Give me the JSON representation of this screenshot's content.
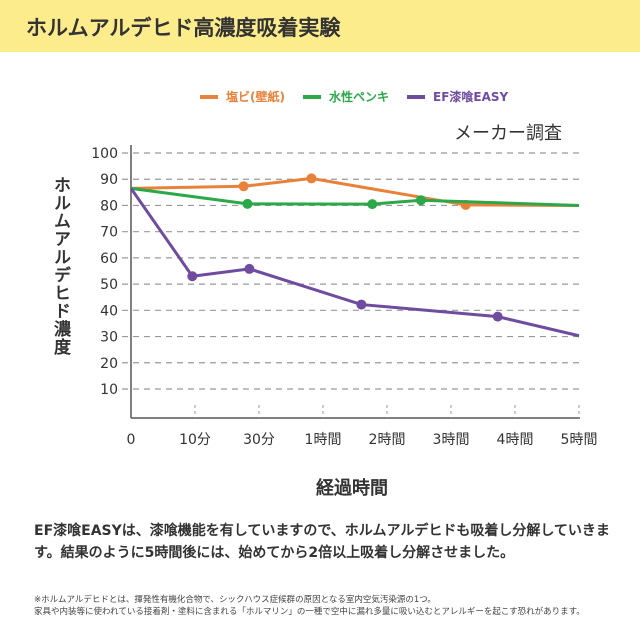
{
  "header": {
    "title": "ホルムアルデヒド高濃度吸着実験"
  },
  "chart_data": {
    "type": "line",
    "title": "ホルムアルデヒド高濃度吸着実験",
    "source": "メーカー調査",
    "xlabel": "経過時間",
    "ylabel": "ホルムアルデヒド濃度",
    "ylim": [
      0,
      100
    ],
    "yticks": [
      10,
      20,
      30,
      40,
      50,
      60,
      70,
      80,
      90,
      100
    ],
    "xticks": [
      {
        "label": "0",
        "hours": 0
      },
      {
        "label": "10分",
        "hours": 0.167
      },
      {
        "label": "30分",
        "hours": 0.5
      },
      {
        "label": "1時間",
        "hours": 1
      },
      {
        "label": "2時間",
        "hours": 2
      },
      {
        "label": "3時間",
        "hours": 3
      },
      {
        "label": "4時間",
        "hours": 4
      },
      {
        "label": "5時間",
        "hours": 5
      }
    ],
    "grid": true,
    "legend": "top",
    "series": [
      {
        "name": "塩ビ(壁紙)",
        "color": "#e8823a",
        "x": [
          0,
          0.42,
          0.91,
          3.23,
          5
        ],
        "y": [
          86.5,
          87.3,
          90.3,
          80.2,
          80
        ],
        "markers": [
          false,
          true,
          true,
          true,
          false
        ]
      },
      {
        "name": "水性ペンキ",
        "color": "#2aa84a",
        "x": [
          0,
          0.44,
          1.77,
          2.53,
          5
        ],
        "y": [
          86.5,
          80.6,
          80.5,
          82,
          80
        ],
        "markers": [
          false,
          true,
          true,
          true,
          false
        ]
      },
      {
        "name": "EF漆喰EASY",
        "color": "#6f4ca0",
        "x": [
          0,
          0.16,
          0.45,
          1.6,
          3.73,
          5
        ],
        "y": [
          86.5,
          53,
          55.8,
          42.2,
          37.6,
          30.3
        ],
        "markers": [
          false,
          true,
          true,
          true,
          true,
          false
        ]
      }
    ]
  },
  "description": "EF漆喰EASYは、漆喰機能を有していますので、ホルムアルデヒドも吸着し分解していきます。結果のように5時間後には、始めてから2倍以上吸着し分解させました。",
  "note_lines": [
    "※ホルムアルデヒドとは、揮発性有機化合物で、シックハウス症候群の原因となる室内空気汚染源の1つ。",
    "家具や内装等に使われている接着剤・塗料に含まれる「ホルマリン」の一種で空中に漏れ多量に吸い込むとアレルギーを起こす恐れがあります。"
  ]
}
